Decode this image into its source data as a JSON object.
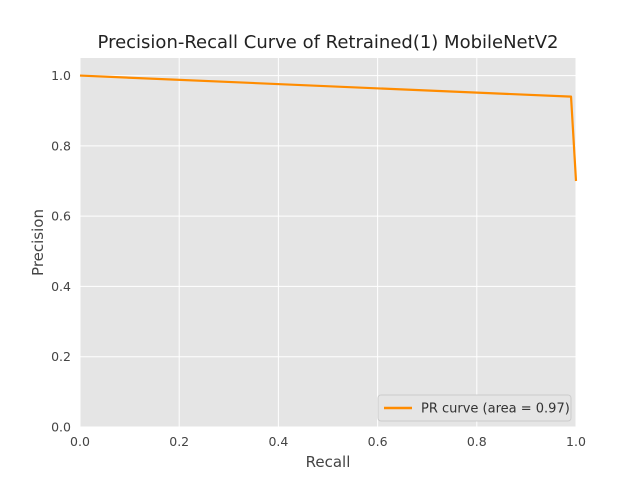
{
  "chart_data": {
    "type": "line",
    "title": "Precision-Recall Curve of Retrained(1) MobileNetV2",
    "xlabel": "Recall",
    "ylabel": "Precision",
    "xlim": [
      0.0,
      1.0
    ],
    "ylim": [
      0.0,
      1.05
    ],
    "xticks": [
      "0.0",
      "0.2",
      "0.4",
      "0.6",
      "0.8",
      "1.0"
    ],
    "yticks": [
      "0.0",
      "0.2",
      "0.4",
      "0.6",
      "0.8",
      "1.0"
    ],
    "grid": true,
    "legend_position": "bottom-right",
    "series": [
      {
        "name": "PR curve (area = 0.97)",
        "color": "#ff8c00",
        "x": [
          0.0,
          0.99,
          1.0
        ],
        "y": [
          1.0,
          0.94,
          0.7
        ]
      }
    ],
    "colors": {
      "plot_background": "#e5e5e5",
      "grid": "#ffffff"
    }
  }
}
